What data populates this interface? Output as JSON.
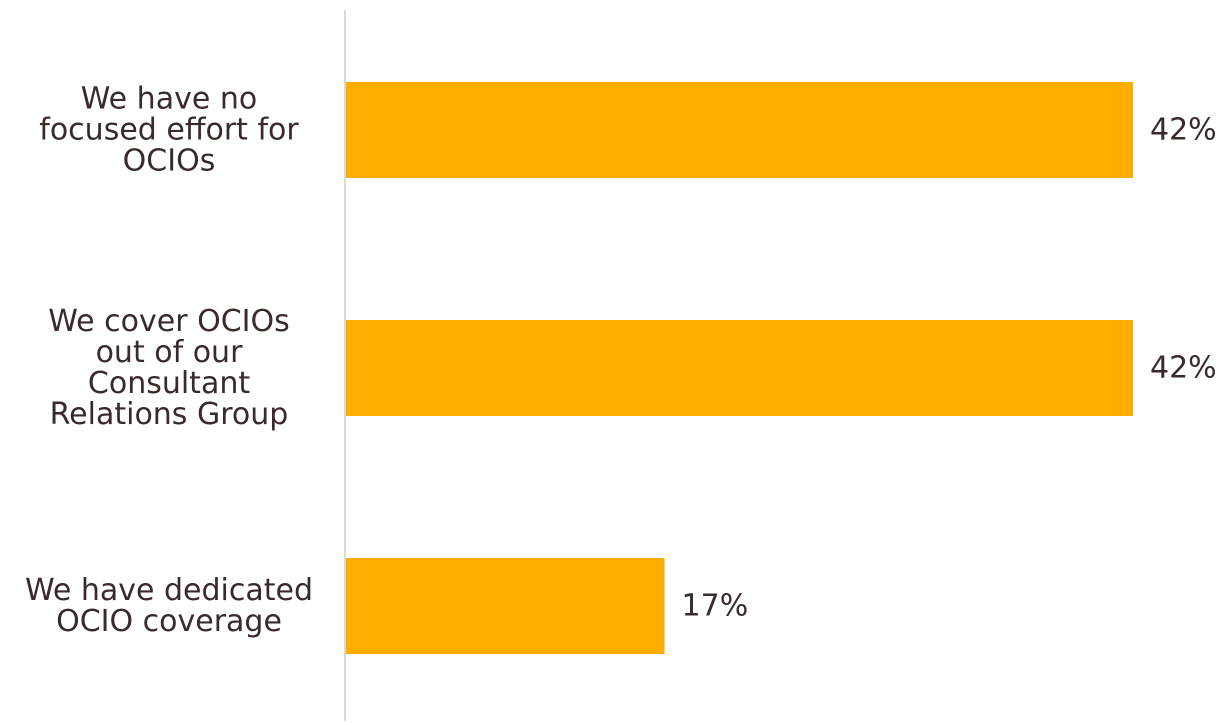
{
  "chart_data": {
    "type": "bar",
    "orientation": "horizontal",
    "categories": [
      "We have no focused effort for OCIOs",
      "We cover OCIOs out of our Consultant Relations Group",
      "We have dedicated OCIO coverage"
    ],
    "category_lines": [
      [
        "We have no",
        "focused effort for",
        "OCIOs"
      ],
      [
        "We cover OCIOs",
        "out of our",
        "Consultant",
        "Relations Group"
      ],
      [
        "We have dedicated",
        "OCIO coverage"
      ]
    ],
    "values": [
      42,
      42,
      17
    ],
    "value_labels": [
      "42%",
      "42%",
      "17%"
    ],
    "unit": "%",
    "xlim": [
      0,
      42
    ],
    "grid": false,
    "legend": "none",
    "bar_color": "#FFAE00",
    "axis_color": "#D9D9D9",
    "text_color": "#3A2A2A"
  }
}
